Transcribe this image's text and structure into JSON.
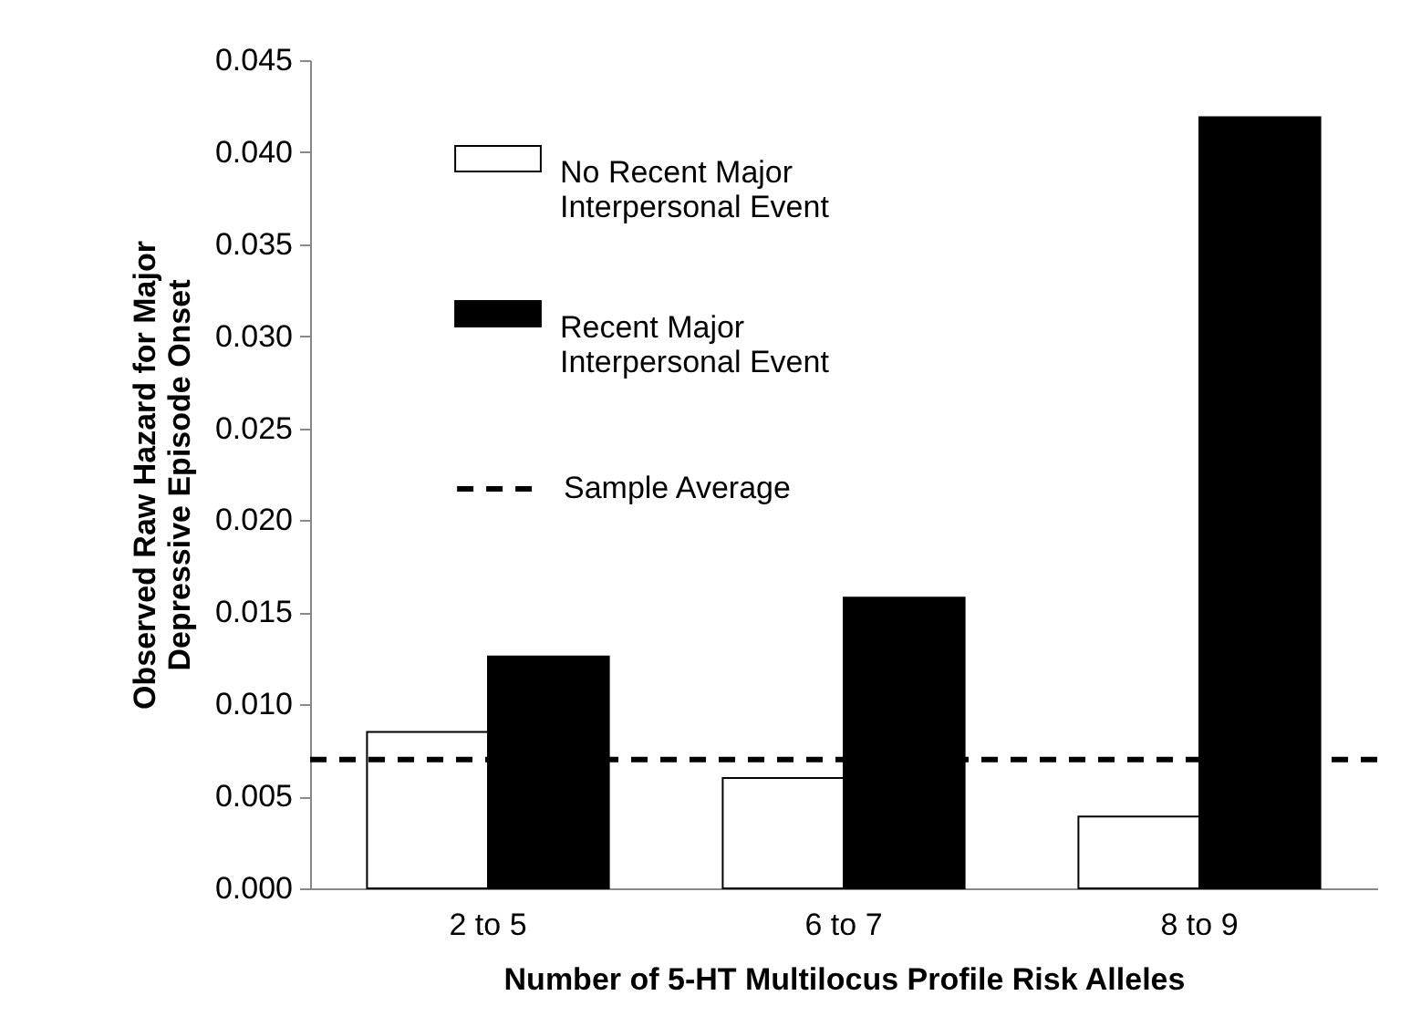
{
  "chart_data": {
    "type": "bar",
    "xlabel": "Number of 5-HT Multilocus Profile Risk Alleles",
    "ylabel": "Observed Raw Hazard for Major Depressive Episode Onset",
    "categories": [
      "2 to 5",
      "6 to 7",
      "8 to 9"
    ],
    "series": [
      {
        "name": "No Recent Major Interpersonal Event",
        "color": "#ffffff",
        "values": [
          0.0085,
          0.006,
          0.0039
        ]
      },
      {
        "name": "Recent Major Interpersonal Event",
        "color": "#000000",
        "values": [
          0.0126,
          0.0158,
          0.0419
        ]
      }
    ],
    "ylim": [
      0,
      0.045
    ],
    "yticks": [
      {
        "value": 0,
        "label": "0.000"
      },
      {
        "value": 0.005,
        "label": "0.005"
      },
      {
        "value": 0.01,
        "label": "0.010"
      },
      {
        "value": 0.015,
        "label": "0.015"
      },
      {
        "value": 0.02,
        "label": "0.020"
      },
      {
        "value": 0.025,
        "label": "0.025"
      },
      {
        "value": 0.03,
        "label": "0.030"
      },
      {
        "value": 0.035,
        "label": "0.035"
      },
      {
        "value": 0.04,
        "label": "0.040"
      },
      {
        "value": 0.045,
        "label": "0.045"
      }
    ],
    "ref_lines": [
      {
        "axis": "y",
        "value": 0.007,
        "label": "Sample Average",
        "color": "#000000",
        "line_style": "dashed"
      }
    ],
    "grid": false,
    "legend": "top left"
  }
}
